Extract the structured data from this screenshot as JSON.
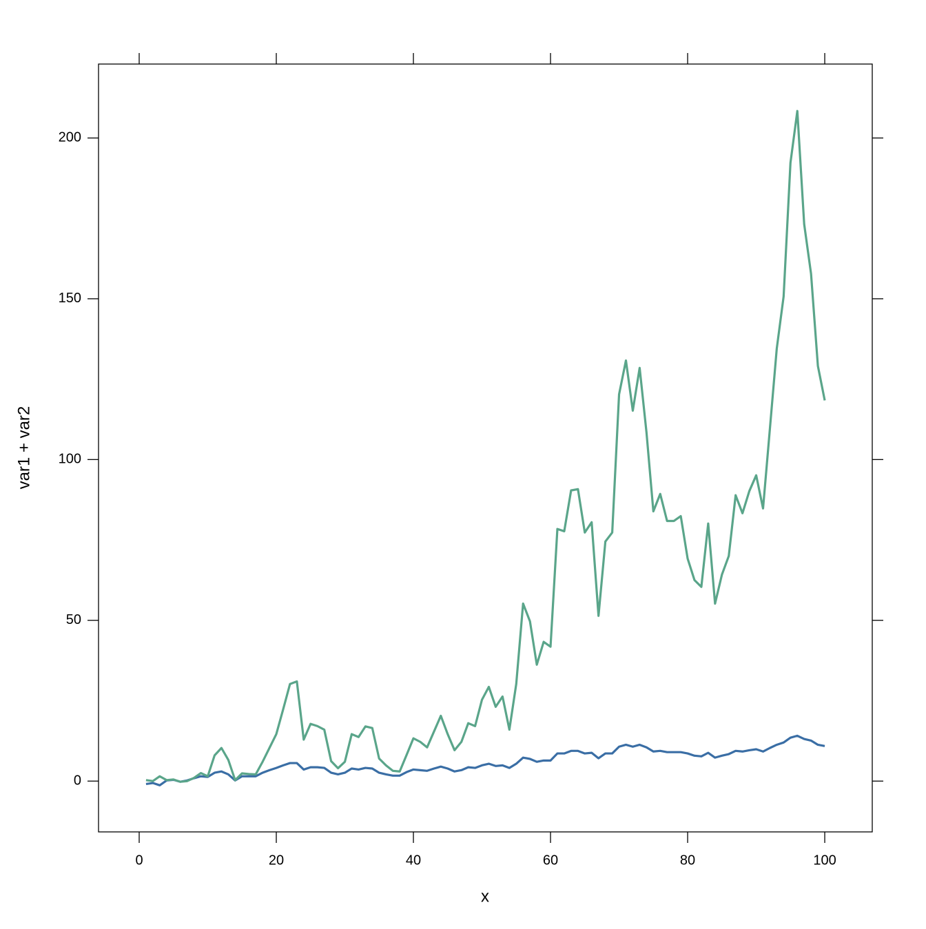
{
  "chart_data": {
    "type": "line",
    "xlabel": "x",
    "ylabel": "var1 + var2",
    "x": [
      1,
      2,
      3,
      4,
      5,
      6,
      7,
      8,
      9,
      10,
      11,
      12,
      13,
      14,
      15,
      16,
      17,
      18,
      19,
      20,
      21,
      22,
      23,
      24,
      25,
      26,
      27,
      28,
      29,
      30,
      31,
      32,
      33,
      34,
      35,
      36,
      37,
      38,
      39,
      40,
      41,
      42,
      43,
      44,
      45,
      46,
      47,
      48,
      49,
      50,
      51,
      52,
      53,
      54,
      55,
      56,
      57,
      58,
      59,
      60,
      61,
      62,
      63,
      64,
      65,
      66,
      67,
      68,
      69,
      70,
      71,
      72,
      73,
      74,
      75,
      76,
      77,
      78,
      79,
      80,
      81,
      82,
      83,
      84,
      85,
      86,
      87,
      88,
      89,
      90,
      91,
      92,
      93,
      94,
      95,
      96,
      97,
      98,
      99,
      100
    ],
    "series": [
      {
        "color": "#3a6ea5",
        "values": [
          -0.9,
          -0.6,
          -1.3,
          0.2,
          0.4,
          -0.2,
          0.2,
          0.9,
          1.5,
          1.3,
          2.6,
          3,
          2.1,
          0.2,
          1.5,
          1.5,
          1.5,
          2.6,
          3.4,
          4.1,
          4.9,
          5.6,
          5.6,
          3.6,
          4.3,
          4.3,
          4.1,
          2.6,
          2.1,
          2.6,
          3.9,
          3.6,
          4.1,
          3.9,
          2.6,
          2.1,
          1.7,
          1.7,
          2.8,
          3.6,
          3.4,
          3.2,
          3.9,
          4.5,
          3.9,
          3,
          3.4,
          4.3,
          4.1,
          4.9,
          5.4,
          4.7,
          4.9,
          4.1,
          5.4,
          7.3,
          6.9,
          6,
          6.4,
          6.4,
          8.6,
          8.6,
          9.4,
          9.4,
          8.6,
          8.8,
          7.1,
          8.6,
          8.6,
          10.7,
          11.3,
          10.7,
          11.3,
          10.5,
          9.2,
          9.4,
          9,
          9,
          9,
          8.6,
          7.9,
          7.7,
          8.8,
          7.3,
          7.9,
          8.4,
          9.4,
          9.2,
          9.6,
          9.9,
          9.2,
          10.3,
          11.3,
          12,
          13.5,
          14.1,
          13.1,
          12.6,
          11.3,
          10.9
        ]
      },
      {
        "color": "#5aa58a",
        "values": [
          0.3,
          0,
          1.5,
          0.3,
          0.5,
          -0.2,
          0,
          1,
          2.5,
          1.5,
          8,
          10.3,
          6.6,
          0.3,
          2.4,
          2.2,
          2.1,
          6,
          10.3,
          14.6,
          22.3,
          30.2,
          31,
          12.9,
          17.8,
          17.1,
          16,
          6.2,
          4,
          6,
          14.6,
          13.7,
          17,
          16.5,
          7,
          4.9,
          3.2,
          3,
          8.1,
          13.3,
          12.2,
          10.5,
          15.4,
          20.3,
          14.6,
          9.6,
          12.2,
          18,
          17.1,
          25.3,
          29.3,
          23.1,
          26.3,
          16,
          30.2,
          55.2,
          49.7,
          36.2,
          43.3,
          41.8,
          78.4,
          77.7,
          90.4,
          90.8,
          77.3,
          80.5,
          51.4,
          74.5,
          77.3,
          120.3,
          130.8,
          115.2,
          128.5,
          108.4,
          83.9,
          89.3,
          80.9,
          80.9,
          82.4,
          69.2,
          62.5,
          60.4,
          80.1,
          55.2,
          64.2,
          70,
          88.9,
          83.3,
          90.2,
          95.1,
          84.8,
          109.6,
          134.5,
          150.7,
          192.3,
          208.4,
          173.2,
          157.8,
          129.1,
          118.4
        ]
      }
    ],
    "xlim": [
      -5.93,
      106.93
    ],
    "ylim": [
      -15.8,
      223
    ],
    "xticks": [
      0,
      20,
      40,
      60,
      80,
      100
    ],
    "yticks": [
      0,
      50,
      100,
      150,
      200
    ]
  }
}
